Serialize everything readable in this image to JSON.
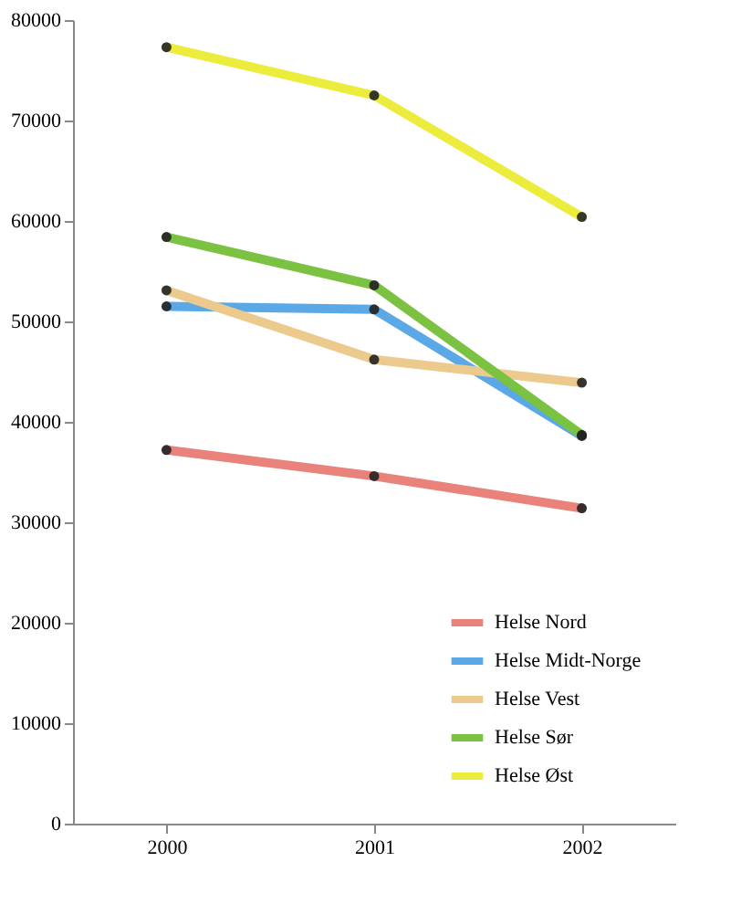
{
  "chart_data": {
    "type": "line",
    "categories": [
      "2000",
      "2001",
      "2002"
    ],
    "series": [
      {
        "name": "Helse Nord",
        "color": "#e8827a",
        "values": [
          37200,
          34600,
          31400
        ]
      },
      {
        "name": "Helse Midt-Norge",
        "color": "#5aa9e6",
        "values": [
          51500,
          51200,
          38600
        ]
      },
      {
        "name": "Helse Vest",
        "color": "#ecc98c",
        "values": [
          53100,
          46200,
          43900
        ]
      },
      {
        "name": "Helse Sør",
        "color": "#7cc242",
        "values": [
          58400,
          53600,
          38700
        ]
      },
      {
        "name": "Helse Øst",
        "color": "#ecec3c",
        "values": [
          77300,
          72500,
          60400
        ]
      }
    ],
    "ylim": [
      0,
      80000
    ],
    "yticks": [
      0,
      10000,
      20000,
      30000,
      40000,
      50000,
      60000,
      70000,
      80000
    ],
    "grid": false,
    "legend": "bottom right",
    "marker": "circle",
    "line_style": "solid"
  }
}
